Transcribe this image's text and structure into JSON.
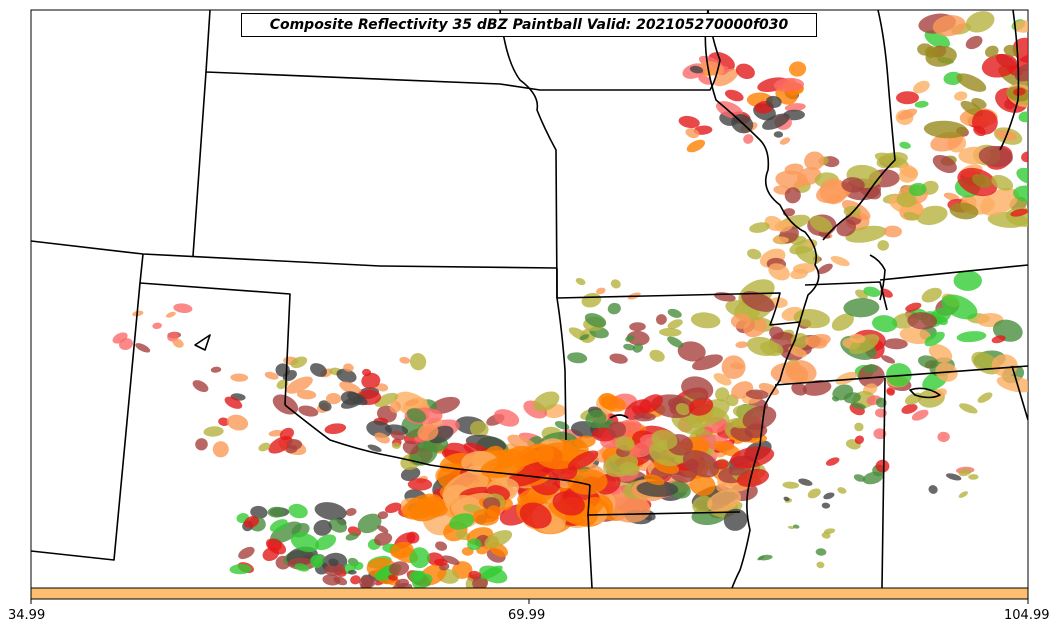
{
  "title": "Composite Reflectivity 35 dBZ Paintball Valid: 202105270000f030",
  "colorbar": {
    "ticks": [
      "34.99",
      "69.99",
      "104.99"
    ],
    "fill_color": "#fdbf6f"
  },
  "palette": {
    "orange": "#ff7f00",
    "red": "#e31a1c",
    "light_red": "#fb6a6a",
    "salmon": "#fb9a59",
    "light_orange": "#fdae61",
    "maroon": "#a6413f",
    "dark_red": "#8b1a1a",
    "olive": "#b5b33d",
    "dark_olive": "#9a8a1f",
    "green": "#33cc33",
    "light_green": "#66dd66",
    "dark_green": "#4a8f3f",
    "gray": "#444444"
  }
}
